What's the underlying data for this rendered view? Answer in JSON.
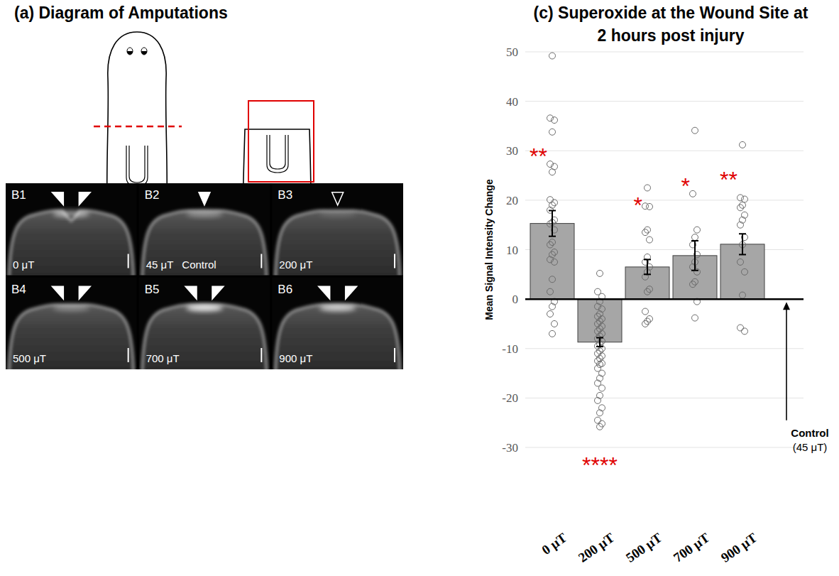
{
  "panel_a": {
    "title": "(a) Diagram of Amputations"
  },
  "panel_b": {
    "images": [
      {
        "label": "B1",
        "field": "0 μT"
      },
      {
        "label": "B2",
        "field": "45 μT",
        "note": "Control"
      },
      {
        "label": "B3",
        "field": "200 μT"
      },
      {
        "label": "B4",
        "field": "500 μT"
      },
      {
        "label": "B5",
        "field": "700 μT"
      },
      {
        "label": "B6",
        "field": "900 μT"
      }
    ]
  },
  "chart_data": {
    "type": "bar",
    "title": "(c) Superoxide at the Wound Site at 2 hours post injury",
    "y_label": "Mean Signal Intensity Change",
    "categories": [
      "0 μT",
      "200 μT",
      "500 μT",
      "700 μT",
      "900 μT"
    ],
    "values": [
      15.3,
      -8.7,
      6.5,
      8.8,
      11.1
    ],
    "errors": [
      2.6,
      0.9,
      1.5,
      3.0,
      2.1
    ],
    "points": [
      [
        49.2,
        36.6,
        36.2,
        33.8,
        27.3,
        26.8,
        25.7,
        20.1,
        19.5,
        19.0,
        18.0,
        16.0,
        15.5,
        15.2,
        14.0,
        11.5,
        11.0,
        9.5,
        9.0,
        8.0,
        7.5,
        4.0,
        1.5,
        -0.5,
        -1.5,
        -3.0,
        -5.0,
        -7.0
      ],
      [
        5.2,
        1.5,
        0.5,
        -0.5,
        -1.5,
        -2.0,
        -3.0,
        -3.5,
        -4.0,
        -4.5,
        -5.0,
        -5.5,
        -6.0,
        -6.5,
        -7.0,
        -7.5,
        -8.0,
        -8.5,
        -9.0,
        -9.5,
        -10.0,
        -10.5,
        -11.0,
        -11.5,
        -12.0,
        -12.5,
        -13.0,
        -13.2,
        -14.0,
        -15.0,
        -16.0,
        -17.0,
        -18.0,
        -19.5,
        -20.5,
        -22.0,
        -23.0,
        -24.5,
        -25.2,
        -25.8
      ],
      [
        22.5,
        18.8,
        18.7,
        14.0,
        13.5,
        12.0,
        8.5,
        7.5,
        6.5,
        5.5,
        4.5,
        2.0,
        1.5,
        -2.5,
        -4.0,
        -4.5,
        -5.0
      ],
      [
        34.1,
        21.3,
        14.0,
        12.5,
        11.0,
        9.0,
        7.5,
        6.5,
        5.5,
        3.5,
        3.0,
        -0.5,
        -3.8
      ],
      [
        31.2,
        20.5,
        20.2,
        19.0,
        18.5,
        17.0,
        16.0,
        15.0,
        12.5,
        11.0,
        7.5,
        5.5,
        0.8,
        -5.8,
        -6.5
      ]
    ],
    "significance": [
      "**",
      "****",
      "*",
      "*",
      "**"
    ],
    "color": "#a6a6a6",
    "ylim": [
      -30,
      50
    ],
    "yticks": [
      -30,
      -20,
      -10,
      0,
      10,
      20,
      30,
      40,
      50
    ],
    "grid": true,
    "annotations": [
      {
        "text": "Control",
        "subtext": "(45 μT)"
      }
    ]
  }
}
